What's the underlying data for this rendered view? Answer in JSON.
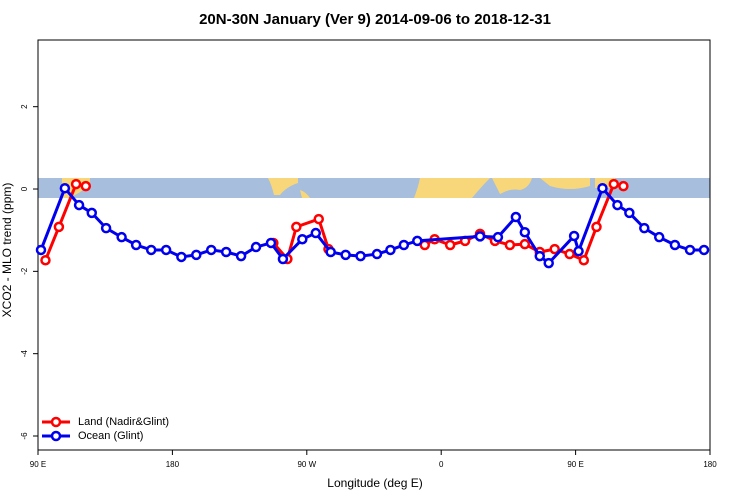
{
  "chart_data": {
    "type": "line",
    "title": "20N-30N January (Ver 9)   2014-09-06 to 2018-12-31",
    "x_label": "Longitude (deg E)",
    "y_label": "XCO2 - MLO trend (ppm)",
    "xlim": [
      90,
      540
    ],
    "ylim": [
      -6.34,
      3.62
    ],
    "xticks": [
      {
        "value": 90,
        "label": "90 E"
      },
      180,
      {
        "value": 270,
        "label": "90 W"
      },
      {
        "value": 360,
        "label": "0"
      },
      {
        "value": 450,
        "label": "90 E"
      },
      {
        "value": 540,
        "label": "180"
      }
    ],
    "yticks": [
      2,
      0,
      -2,
      -4,
      -6
    ],
    "legend": "bottom-left",
    "series": [
      {
        "name": "Land (Nadir&Glint)",
        "color": "#ff0000",
        "x": [
          95,
          104,
          115.5,
          122,
          null,
          247.6,
          257,
          263,
          278,
          284.5,
          null,
          349,
          355.6,
          366,
          376,
          386,
          396,
          406,
          416,
          426,
          436,
          446,
          455.5,
          464,
          475.6,
          482
        ],
        "values": [
          -1.73,
          -0.92,
          0.12,
          0.07,
          null,
          -1.31,
          -1.7,
          -0.92,
          -0.73,
          -1.46,
          null,
          -1.36,
          -1.22,
          -1.36,
          -1.26,
          -1.09,
          -1.26,
          -1.36,
          -1.34,
          -1.53,
          -1.46,
          -1.58,
          -1.73,
          -0.92,
          0.12,
          0.07
        ]
      },
      {
        "name": "Ocean (Glint)",
        "color": "#0000ee",
        "x": [
          92,
          108,
          117.5,
          126,
          135.6,
          146,
          155.7,
          165.8,
          175.8,
          186,
          196,
          206,
          216,
          226,
          236,
          246,
          254,
          267,
          276,
          286,
          296,
          306,
          317,
          326,
          335,
          344,
          386,
          398,
          410,
          416,
          426,
          432,
          449,
          452,
          468,
          478,
          486,
          496,
          506,
          516.5,
          526.6,
          536
        ],
        "values": [
          -1.48,
          0.02,
          -0.39,
          -0.58,
          -0.95,
          -1.17,
          -1.36,
          -1.48,
          -1.48,
          -1.65,
          -1.6,
          -1.48,
          -1.53,
          -1.63,
          -1.41,
          -1.31,
          -1.7,
          -1.22,
          -1.07,
          -1.53,
          -1.6,
          -1.63,
          -1.58,
          -1.48,
          -1.36,
          -1.26,
          -1.15,
          -1.17,
          -0.68,
          -1.05,
          -1.63,
          -1.8,
          -1.14,
          -1.51,
          0.02,
          -0.39,
          -0.58,
          -0.95,
          -1.17,
          -1.36,
          -1.48,
          -1.48
        ]
      }
    ]
  }
}
